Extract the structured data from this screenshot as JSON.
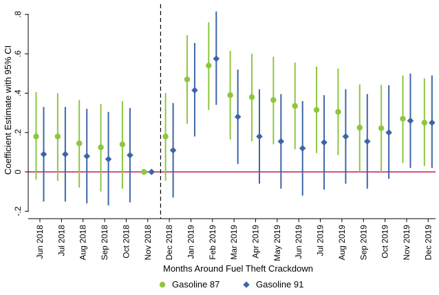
{
  "chart_data": {
    "type": "scatter",
    "title": "",
    "xlabel": "Months Around Fuel Theft Crackdown",
    "ylabel": "Coefficient Estimate with 95% CI",
    "ylim": [
      -0.2,
      0.8
    ],
    "yticks": [
      -0.2,
      0,
      0.2,
      0.4,
      0.6,
      0.8
    ],
    "ytick_labels": [
      "-.2",
      "0",
      ".2",
      ".4",
      ".6",
      ".8"
    ],
    "categories": [
      "Jun 2018",
      "Jul 2018",
      "Aug 2018",
      "Sep 2018",
      "Oct 2018",
      "Nov 2018",
      "Dec 2018",
      "Jan 2019",
      "Feb 2019",
      "Mar 2019",
      "Apr 2019",
      "May 2019",
      "Jun 2019",
      "Jul 2019",
      "Aug 2019",
      "Sep 2019",
      "Oct 2019",
      "Nov 2019",
      "Dec 2019"
    ],
    "reference_line_y": 0,
    "event_line_between": [
      "Nov 2018",
      "Dec 2018"
    ],
    "legend_position": "bottom",
    "grid": false,
    "series": [
      {
        "name": "Gasoline 87",
        "marker": "circle",
        "color": "#8dc63f",
        "values": [
          0.18,
          0.18,
          0.145,
          0.125,
          0.14,
          0.0,
          0.18,
          0.47,
          0.54,
          0.39,
          0.38,
          0.365,
          0.335,
          0.315,
          0.305,
          0.225,
          0.222,
          0.27,
          0.25
        ],
        "ci_low": [
          -0.04,
          -0.045,
          -0.08,
          -0.1,
          -0.085,
          0.0,
          -0.045,
          0.245,
          0.315,
          0.165,
          0.155,
          0.14,
          0.115,
          0.095,
          0.085,
          0.0,
          0.0,
          0.045,
          0.03
        ],
        "ci_high": [
          0.405,
          0.4,
          0.365,
          0.345,
          0.36,
          0.0,
          0.4,
          0.695,
          0.76,
          0.615,
          0.6,
          0.585,
          0.555,
          0.535,
          0.525,
          0.445,
          0.442,
          0.49,
          0.475
        ]
      },
      {
        "name": "Gasoline 91",
        "marker": "diamond",
        "color": "#3c65a5",
        "values": [
          0.09,
          0.09,
          0.08,
          0.065,
          0.085,
          0.0,
          0.11,
          0.415,
          0.575,
          0.28,
          0.18,
          0.155,
          0.12,
          0.15,
          0.18,
          0.155,
          0.2,
          0.26,
          0.25
        ],
        "ci_low": [
          -0.15,
          -0.15,
          -0.16,
          -0.17,
          -0.155,
          0.0,
          -0.13,
          0.18,
          0.34,
          0.04,
          -0.06,
          -0.085,
          -0.12,
          -0.09,
          -0.06,
          -0.085,
          -0.035,
          0.02,
          0.02
        ],
        "ci_high": [
          0.33,
          0.33,
          0.32,
          0.305,
          0.325,
          0.0,
          0.35,
          0.655,
          0.815,
          0.52,
          0.42,
          0.395,
          0.36,
          0.39,
          0.42,
          0.395,
          0.44,
          0.5,
          0.49
        ]
      }
    ],
    "colors": {
      "zero_line": "#c2185b",
      "event_line": "#000000",
      "axis": "#000000"
    }
  }
}
